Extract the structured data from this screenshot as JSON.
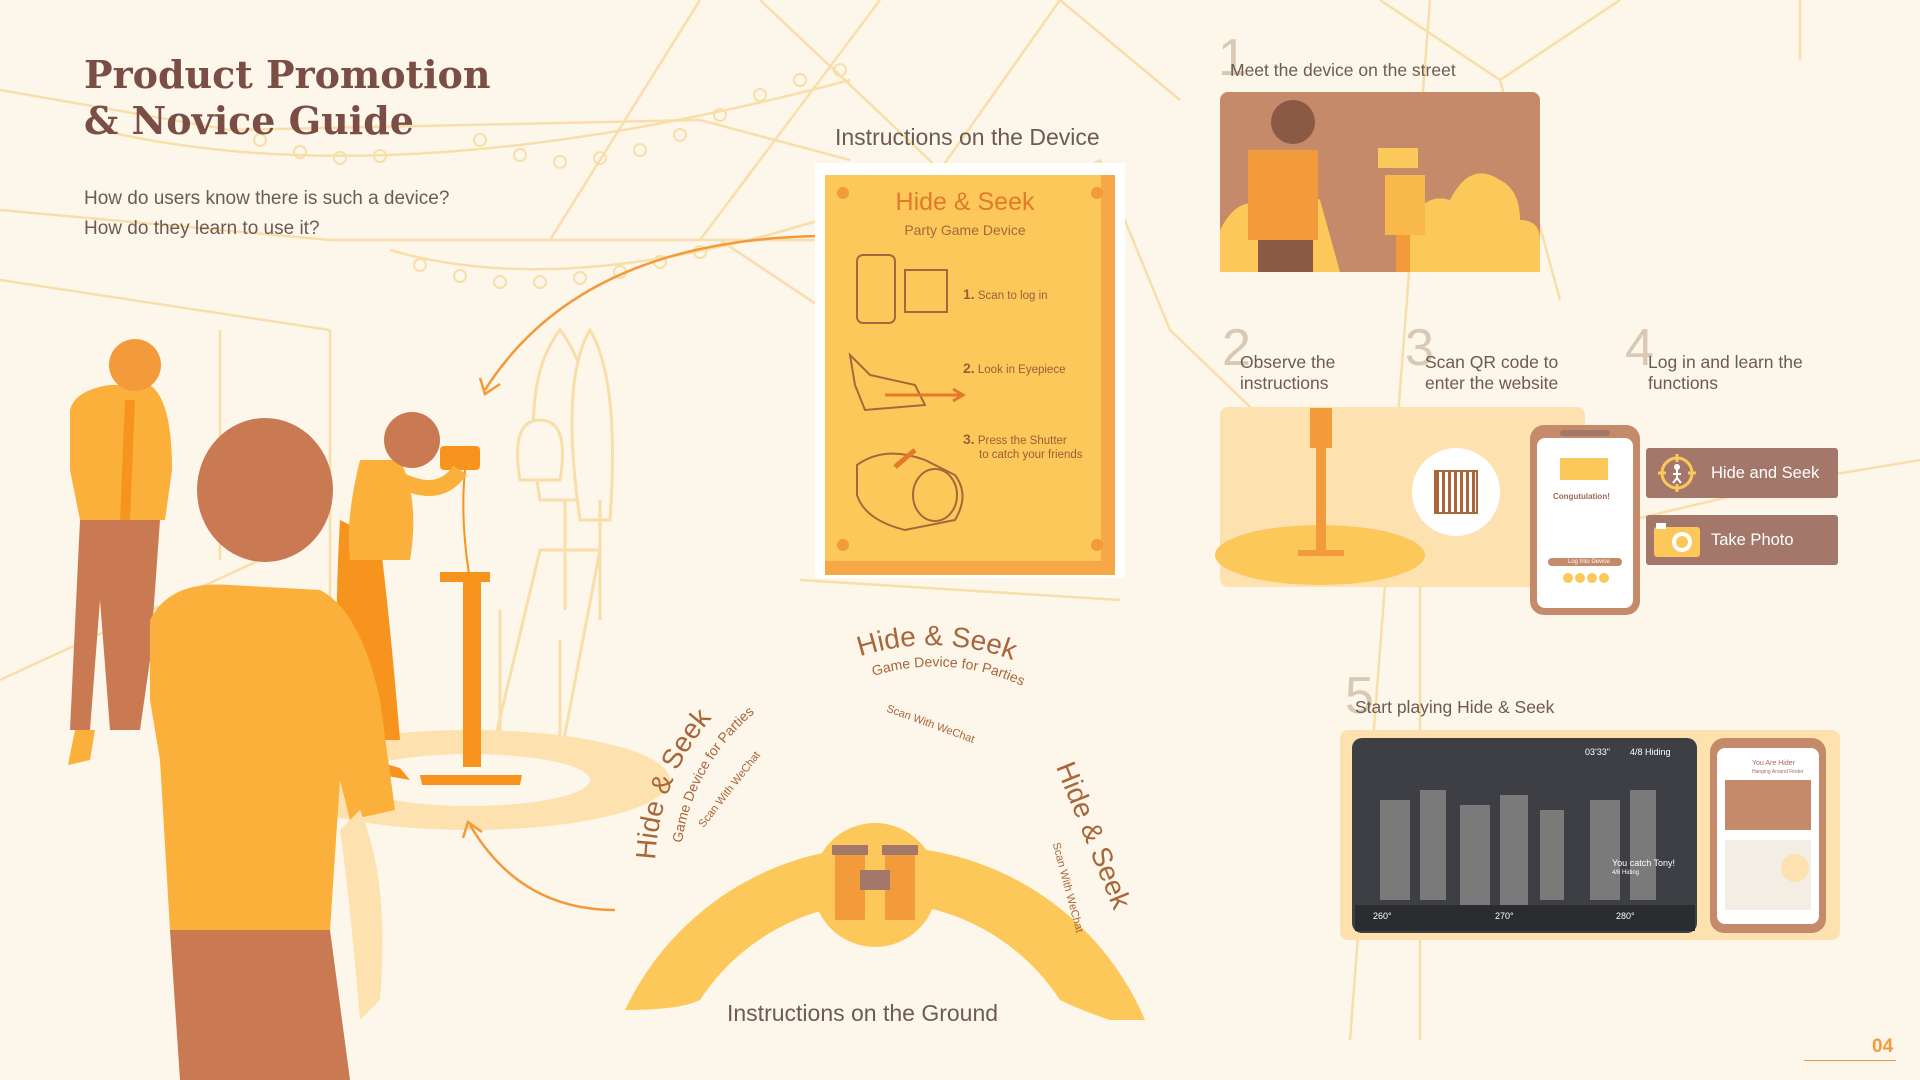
{
  "page": {
    "title_line1": "Product Promotion",
    "title_line2": "& Novice Guide",
    "question1": "How do users know there is such a device?",
    "question2": "How do they learn to use it?",
    "page_number": "04"
  },
  "device_instructions": {
    "caption": "Instructions on the Device",
    "plate_title": "Hide & Seek",
    "plate_subtitle": "Party Game Device",
    "steps": [
      {
        "num": "1.",
        "text": "Scan to log in"
      },
      {
        "num": "2.",
        "text": "Look in Eyepiece"
      },
      {
        "num": "3.",
        "text": "Press the Shutter",
        "text2": "to catch your friends"
      }
    ]
  },
  "ground_instructions": {
    "caption": "Instructions on the Ground",
    "arc_title": "Hide & Seek",
    "arc_subtitle": "Game Device for Parties",
    "arc_scan": "Scan With WeChat"
  },
  "steps": [
    {
      "num": "1",
      "label": "Meet the device on the street"
    },
    {
      "num": "2",
      "label": "Observe the instructions"
    },
    {
      "num": "3",
      "label": "Scan QR code to enter the website"
    },
    {
      "num": "4",
      "label": "Log in and learn the functions"
    },
    {
      "num": "5",
      "label": "Start playing Hide & Seek"
    }
  ],
  "functions": [
    {
      "label": "Hide and Seek",
      "icon": "target-person-icon"
    },
    {
      "label": "Take Photo",
      "icon": "camera-icon"
    }
  ],
  "phone_login": {
    "heading": "Congutulation!",
    "button": "Log Into Device"
  },
  "game_hud": {
    "timer": "03'33\"",
    "hiding": "4/8 Hiding",
    "catch_message": "You catch Tony!",
    "catch_sub": "4/8 Hiding",
    "compass": [
      "260°",
      "270°",
      "280°"
    ]
  },
  "phone_game": {
    "role": "You Are Hider",
    "role_sub": "Hanging Around Finder"
  },
  "colors": {
    "accent_orange": "#f39a3a",
    "yellow": "#fdc85a",
    "brown": "#a4776b",
    "background": "#fdf6ea"
  }
}
